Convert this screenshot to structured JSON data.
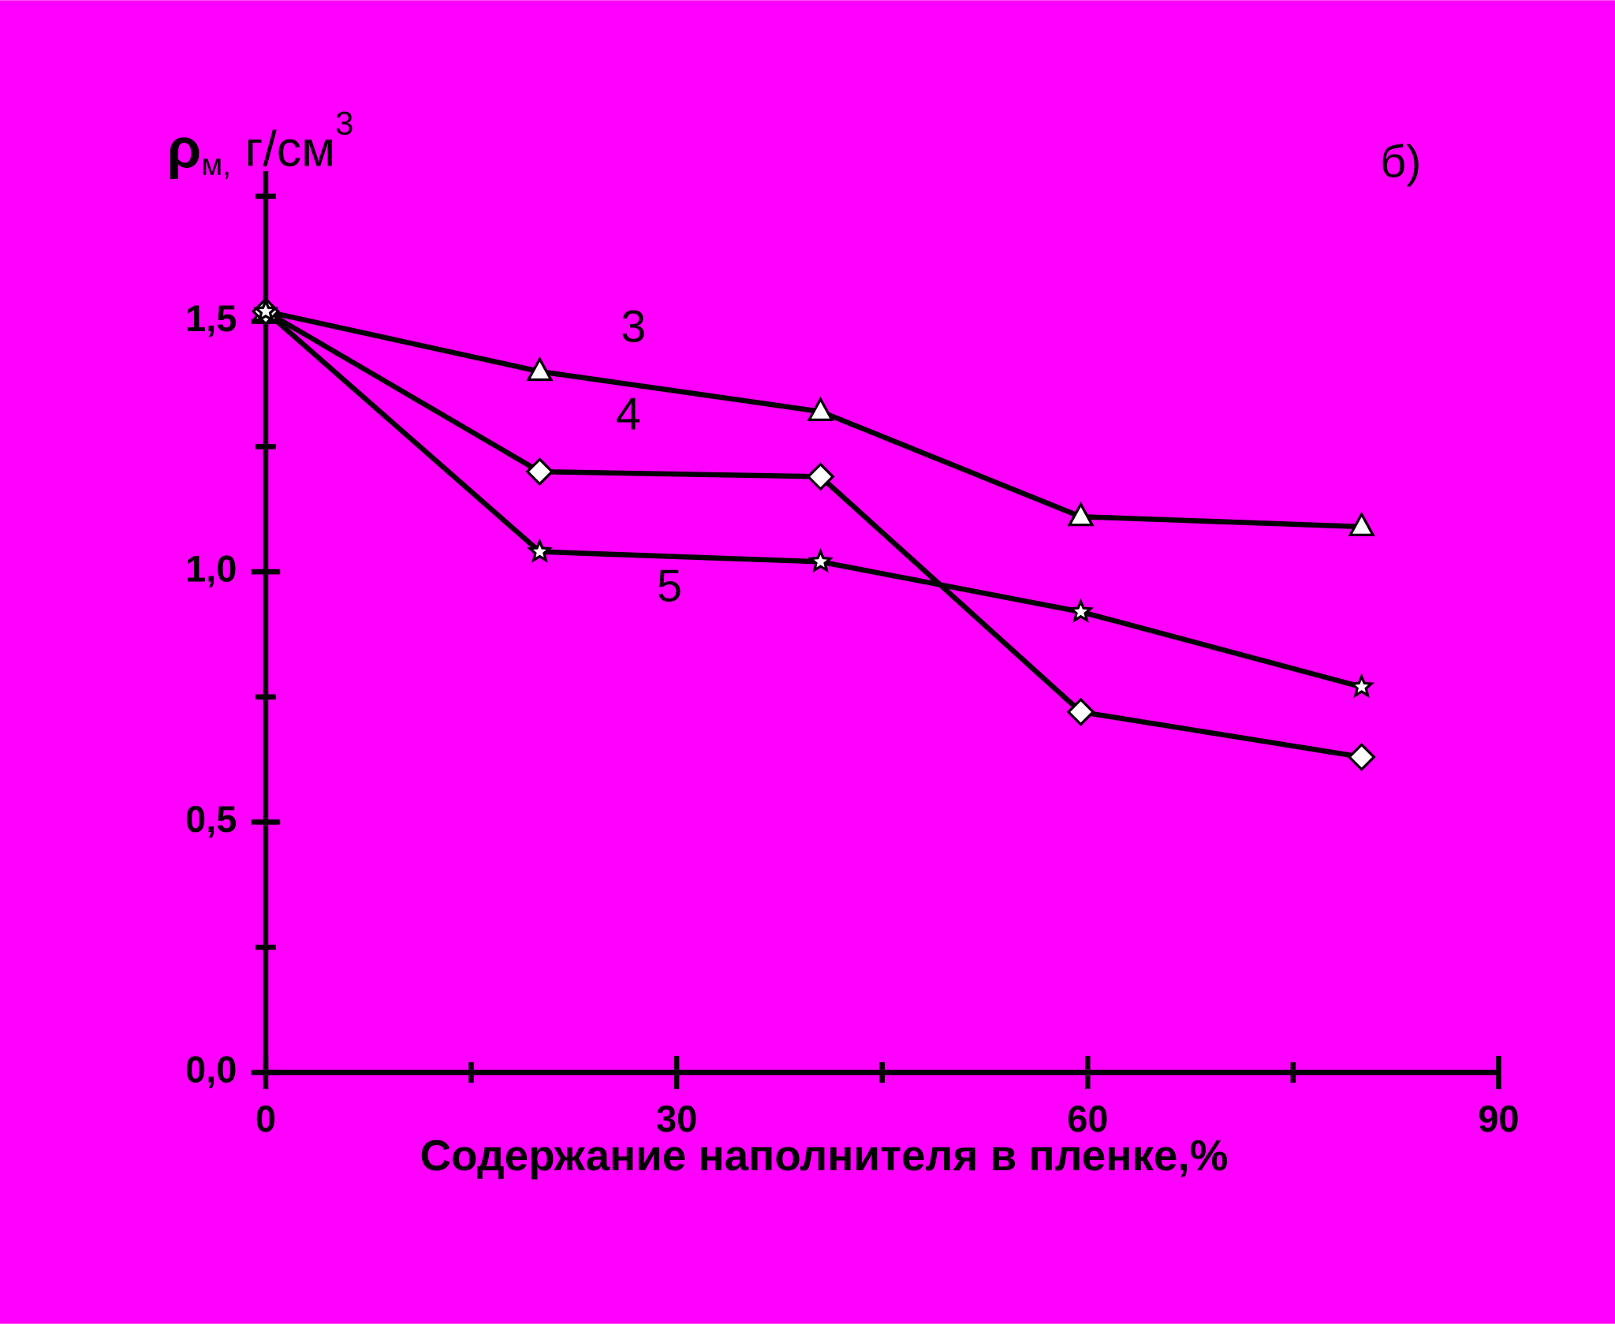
{
  "chart_data": {
    "type": "line",
    "panel_label": "б)",
    "y_label": {
      "symbol": "ρ",
      "subscript": "м,",
      "unit": " г/см",
      "superscript": "3"
    },
    "x_label": "Содержание  наполнителя в пленке,%",
    "x": [
      0,
      20,
      40.5,
      59.5,
      80
    ],
    "series": [
      {
        "name": "3",
        "marker": "triangle",
        "color": "#000000",
        "values": [
          1.52,
          1.4,
          1.32,
          1.11,
          1.09
        ]
      },
      {
        "name": "4",
        "marker": "diamond",
        "color": "#000000",
        "values": [
          1.52,
          1.2,
          1.19,
          0.72,
          0.63
        ]
      },
      {
        "name": "5",
        "marker": "star",
        "color": "#000000",
        "values": [
          1.52,
          1.04,
          1.02,
          0.92,
          0.77
        ]
      }
    ],
    "xlim": [
      0,
      90
    ],
    "xticks": [
      0,
      30,
      60,
      90
    ],
    "xminorticks": [
      15,
      45,
      75
    ],
    "ylim": [
      0,
      1.8
    ],
    "yticks": [
      {
        "value": 0,
        "label": "0,0"
      },
      {
        "value": 0.5,
        "label": "0,5"
      },
      {
        "value": 1,
        "label": "1,0"
      },
      {
        "value": 1.5,
        "label": "1,5"
      }
    ],
    "yminorticks": [
      0.25,
      0.75,
      1.25,
      1.75
    ],
    "background": "#ff00ff",
    "marker_fill": "#ffffff"
  }
}
